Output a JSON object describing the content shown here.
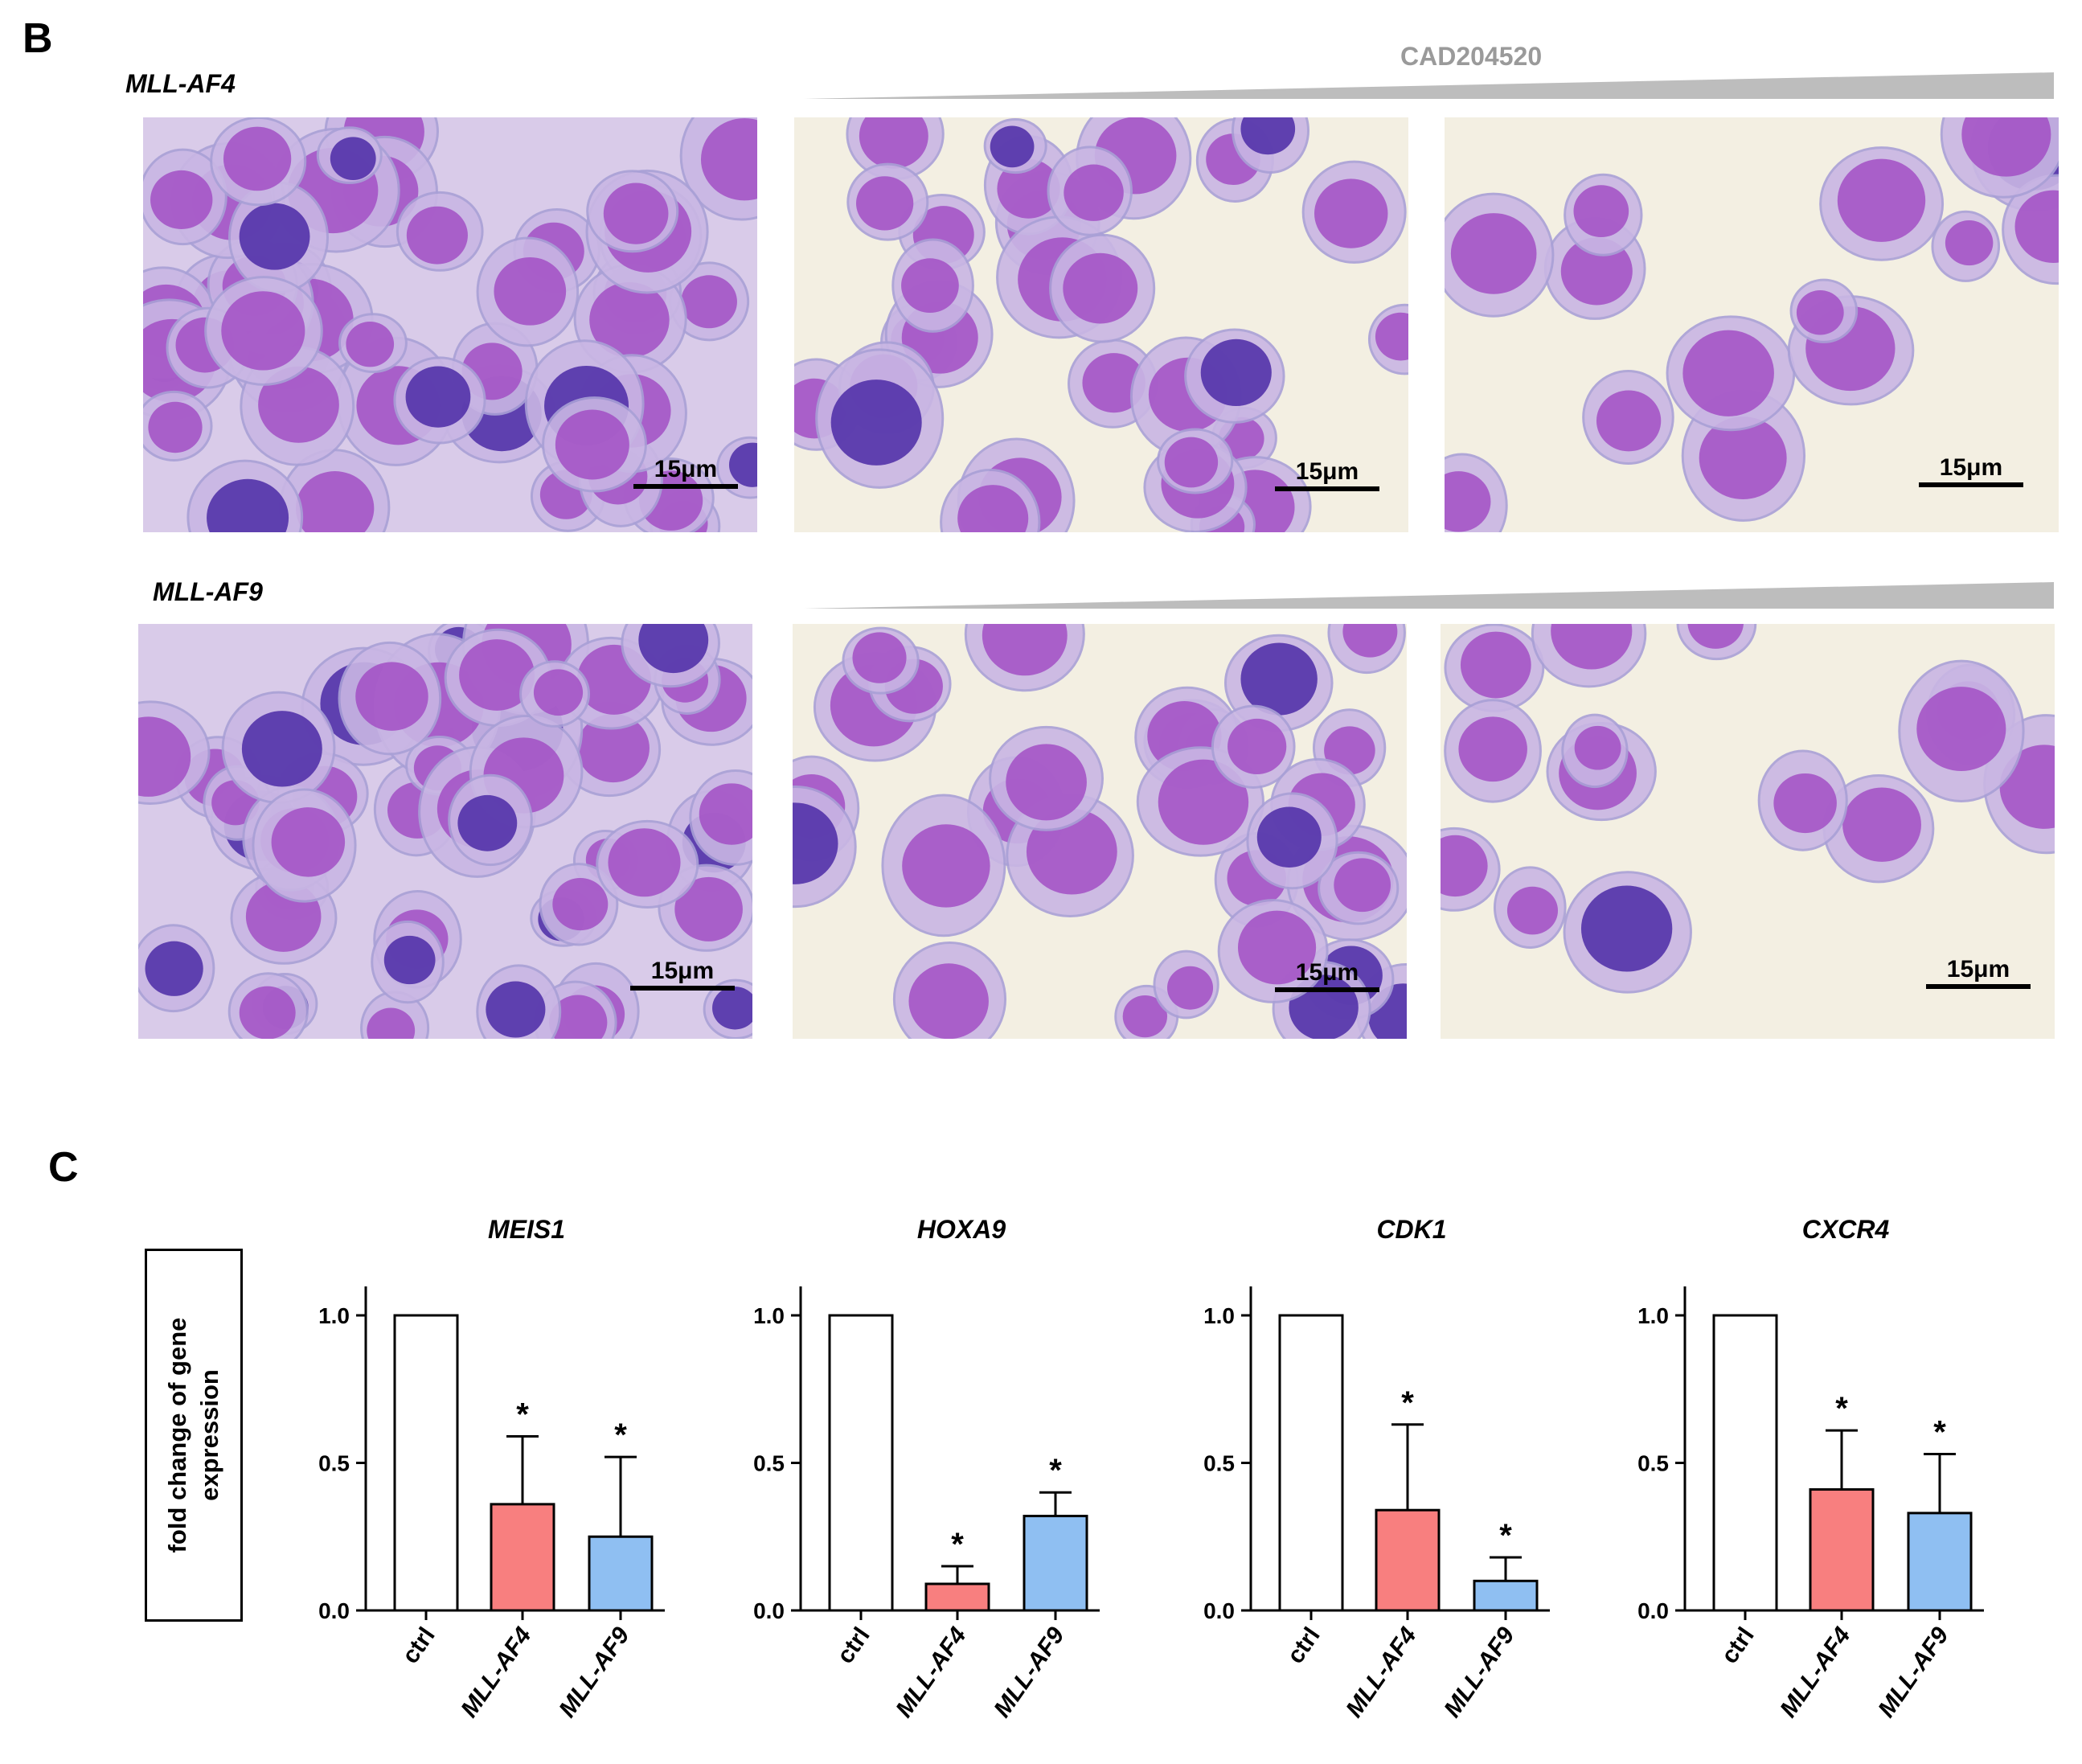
{
  "panels": {
    "B": "B",
    "C": "C"
  },
  "micrographs": {
    "drug_label": "CAD204520",
    "rows": [
      {
        "label": "MLL-AF4",
        "scale_labels": [
          "15μm",
          "15μm",
          "15μm"
        ]
      },
      {
        "label": "MLL-AF9",
        "scale_labels": [
          "15μm",
          "15μm",
          "15μm"
        ]
      }
    ]
  },
  "ylabel": "fold change of gene expression",
  "colors": {
    "ctrl": "#ffffff",
    "MLL-AF4": "#f87f7f",
    "MLL-AF9": "#8fbff2",
    "stain_nucleus": "#a24fc4",
    "stain_cytoplasm": "#c9b6e4",
    "stain_dark": "#4b2aa6",
    "background": "#f3efe2"
  },
  "chart_data": [
    {
      "type": "bar",
      "title": "MEIS1",
      "categories": [
        "ctrl",
        "MLL-AF4",
        "MLL-AF9"
      ],
      "values": [
        1.0,
        0.36,
        0.25
      ],
      "errors": [
        0,
        0.23,
        0.27
      ],
      "significance": [
        "",
        "*",
        "*"
      ],
      "ylim": [
        0,
        1.0
      ],
      "yticks": [
        "0.0",
        "0.5",
        "1.0"
      ]
    },
    {
      "type": "bar",
      "title": "HOXA9",
      "categories": [
        "ctrl",
        "MLL-AF4",
        "MLL-AF9"
      ],
      "values": [
        1.0,
        0.09,
        0.32
      ],
      "errors": [
        0,
        0.06,
        0.08
      ],
      "significance": [
        "",
        "*",
        "*"
      ],
      "ylim": [
        0,
        1.0
      ],
      "yticks": [
        "0.0",
        "0.5",
        "1.0"
      ]
    },
    {
      "type": "bar",
      "title": "CDK1",
      "categories": [
        "ctrl",
        "MLL-AF4",
        "MLL-AF9"
      ],
      "values": [
        1.0,
        0.34,
        0.1
      ],
      "errors": [
        0,
        0.29,
        0.08
      ],
      "significance": [
        "",
        "*",
        "*"
      ],
      "ylim": [
        0,
        1.0
      ],
      "yticks": [
        "0.0",
        "0.5",
        "1.0"
      ]
    },
    {
      "type": "bar",
      "title": "CXCR4",
      "categories": [
        "ctrl",
        "MLL-AF4",
        "MLL-AF9"
      ],
      "values": [
        1.0,
        0.41,
        0.33
      ],
      "errors": [
        0,
        0.2,
        0.2
      ],
      "significance": [
        "",
        "*",
        "*"
      ],
      "ylim": [
        0,
        1.0
      ],
      "yticks": [
        "0.0",
        "0.5",
        "1.0"
      ]
    }
  ]
}
